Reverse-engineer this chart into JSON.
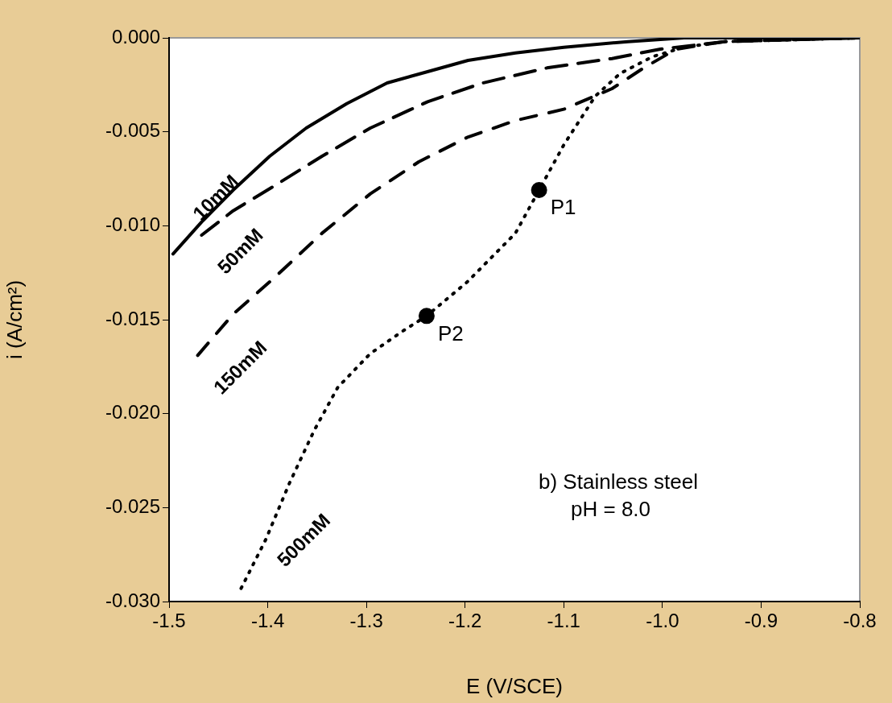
{
  "chart_data": {
    "type": "line",
    "xlabel": "E (V/SCE)",
    "ylabel": "i (A/cm²)",
    "xlim": [
      -1.5,
      -0.8
    ],
    "xticks": [
      {
        "value": -1.5,
        "label": "-1.5"
      },
      {
        "value": -1.4,
        "label": "-1.4"
      },
      {
        "value": -1.3,
        "label": "-1.3"
      },
      {
        "value": -1.2,
        "label": "-1.2"
      },
      {
        "value": -1.1,
        "label": "-1.1"
      },
      {
        "value": -1.0,
        "label": "-1.0"
      },
      {
        "value": -0.9,
        "label": "-0.9"
      },
      {
        "value": -0.8,
        "label": "-0.8"
      }
    ],
    "ylim": [
      -0.03,
      0
    ],
    "yticks": [
      {
        "value": 0,
        "label": "0.000"
      },
      {
        "value": -0.005,
        "label": "-0.005"
      },
      {
        "value": -0.01,
        "label": "-0.010"
      },
      {
        "value": -0.015,
        "label": "-0.015"
      },
      {
        "value": -0.02,
        "label": "-0.020"
      },
      {
        "value": -0.025,
        "label": "-0.025"
      },
      {
        "value": -0.03,
        "label": "-0.030"
      }
    ],
    "grid": false,
    "legend": false,
    "marker": "none",
    "series": [
      {
        "name": "10mM",
        "color": "#000000",
        "line_style": "solid",
        "x": [
          -1.496,
          -1.467,
          -1.435,
          -1.398,
          -1.361,
          -1.32,
          -1.279,
          -1.238,
          -1.197,
          -1.149,
          -1.1,
          -1.035,
          -0.978,
          -0.8
        ],
        "values": [
          -0.0115,
          -0.0098,
          -0.0081,
          -0.0063,
          -0.0048,
          -0.0035,
          -0.0024,
          -0.0018,
          -0.0012,
          -0.0008,
          -0.0005,
          -0.0002,
          0,
          0
        ]
      },
      {
        "name": "50mM",
        "color": "#000000",
        "line_style": "dashed",
        "x": [
          -1.467,
          -1.435,
          -1.394,
          -1.345,
          -1.296,
          -1.238,
          -1.182,
          -1.117,
          -1.051,
          -1.002,
          -0.937,
          -0.8
        ],
        "values": [
          -0.0105,
          -0.0092,
          -0.0079,
          -0.0063,
          -0.0048,
          -0.0034,
          -0.0024,
          -0.0016,
          -0.0011,
          -0.0006,
          -0.0002,
          0
        ]
      },
      {
        "name": "150mM",
        "color": "#000000",
        "line_style": "dashed",
        "x": [
          -1.471,
          -1.435,
          -1.394,
          -1.345,
          -1.296,
          -1.247,
          -1.198,
          -1.149,
          -1.1,
          -1.051,
          -1.019,
          -0.986,
          -0.937,
          -0.8
        ],
        "values": [
          -0.0169,
          -0.0147,
          -0.0128,
          -0.0104,
          -0.0083,
          -0.0066,
          -0.0053,
          -0.0044,
          -0.0038,
          -0.0027,
          -0.0016,
          -0.0006,
          -0.0002,
          0
        ]
      },
      {
        "name": "500mM",
        "color": "#000000",
        "line_style": "dotted",
        "x": [
          -1.427,
          -1.402,
          -1.378,
          -1.353,
          -1.329,
          -1.296,
          -1.263,
          -1.239,
          -1.198,
          -1.149,
          -1.125,
          -1.1,
          -1.068,
          -1.043,
          -1.01,
          -0.978,
          -0.937,
          -0.8
        ],
        "values": [
          -0.0293,
          -0.0267,
          -0.0237,
          -0.0209,
          -0.0186,
          -0.0168,
          -0.0156,
          -0.0148,
          -0.013,
          -0.0104,
          -0.0081,
          -0.0057,
          -0.0031,
          -0.0019,
          -0.001,
          -0.0005,
          -0.0002,
          0
        ]
      },
      {
        "type": "scatter",
        "color": "#000000",
        "marker": "circle",
        "x": [
          -1.125,
          -1.239
        ],
        "values": [
          -0.0081,
          -0.0148
        ]
      }
    ],
    "annotations": [
      {
        "text": "P1",
        "x": -1.125,
        "y": -0.0081
      },
      {
        "text": "P2",
        "x": -1.239,
        "y": -0.0148
      },
      "b) Stainless steel\npH = 8.0"
    ]
  }
}
